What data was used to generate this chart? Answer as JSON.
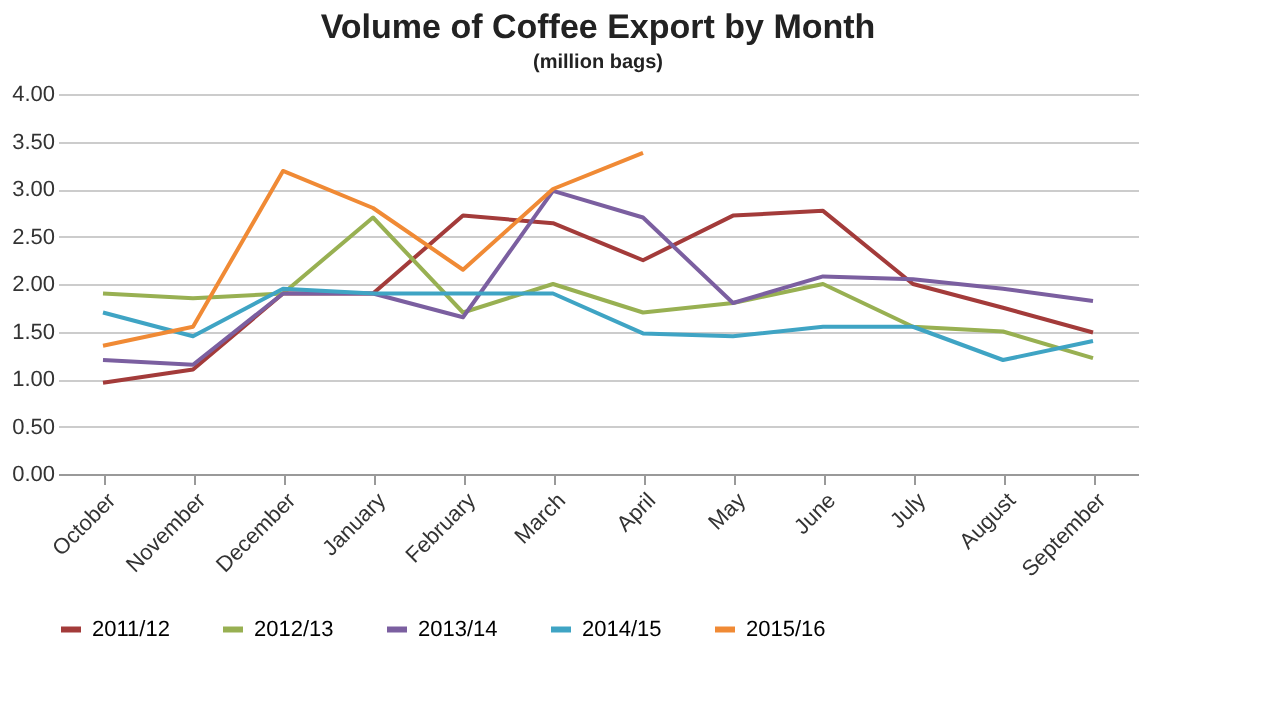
{
  "chart_data": {
    "type": "line",
    "title": "Volume of Coffee Export by Month",
    "subtitle": "(million bags)",
    "categories": [
      "October",
      "November",
      "December",
      "January",
      "February",
      "March",
      "April",
      "May",
      "June",
      "July",
      "August",
      "September"
    ],
    "series": [
      {
        "name": "2011/12",
        "color": "#a33b3a",
        "values": [
          0.96,
          1.1,
          1.9,
          1.9,
          2.72,
          2.64,
          2.25,
          2.72,
          2.77,
          2.0,
          1.75,
          1.49
        ]
      },
      {
        "name": "2012/13",
        "color": "#98b052",
        "values": [
          1.9,
          1.85,
          1.9,
          2.7,
          1.7,
          2.0,
          1.7,
          1.8,
          2.0,
          1.55,
          1.5,
          1.22
        ]
      },
      {
        "name": "2013/14",
        "color": "#7b5fa0",
        "values": [
          1.2,
          1.15,
          1.9,
          1.9,
          1.65,
          2.98,
          2.7,
          1.8,
          2.08,
          2.05,
          1.95,
          1.82
        ]
      },
      {
        "name": "2014/15",
        "color": "#3fa4c4",
        "values": [
          1.7,
          1.45,
          1.95,
          1.9,
          1.9,
          1.9,
          1.48,
          1.45,
          1.55,
          1.55,
          1.2,
          1.4
        ]
      },
      {
        "name": "2015/16",
        "color": "#f08a35",
        "values": [
          1.35,
          1.55,
          3.19,
          2.8,
          2.15,
          3.0,
          3.38,
          null,
          null,
          null,
          null,
          null
        ]
      }
    ],
    "ylim": [
      0,
      4
    ],
    "yticks": [
      {
        "value": 0,
        "label": "0.00"
      },
      {
        "value": 0.5,
        "label": "0.50"
      },
      {
        "value": 1,
        "label": "1.00"
      },
      {
        "value": 1.5,
        "label": "1.50"
      },
      {
        "value": 2,
        "label": "2.00"
      },
      {
        "value": 2.5,
        "label": "2.50"
      },
      {
        "value": 3,
        "label": "3.00"
      },
      {
        "value": 3.5,
        "label": "3.50"
      },
      {
        "value": 4,
        "label": "4.00"
      }
    ],
    "grid": "y",
    "legend": "bottom",
    "marker": "none",
    "line_style": "solid"
  }
}
